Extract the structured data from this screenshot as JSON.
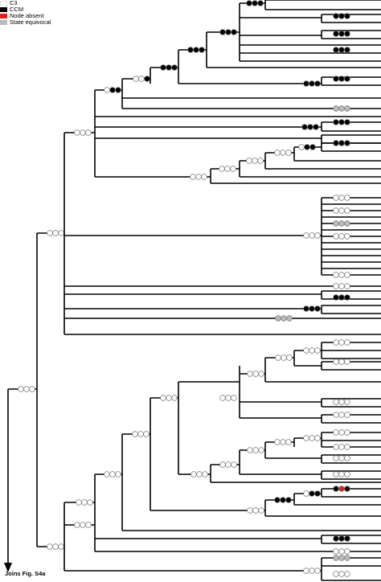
{
  "legend": {
    "items": [
      {
        "label": "C3",
        "color": "#ffffff"
      },
      {
        "label": "CCM",
        "color": "#000000"
      },
      {
        "label": "Node absent",
        "color": "#e02020"
      },
      {
        "label": "State equivocal",
        "color": "#bbbbbb"
      }
    ]
  },
  "footer": {
    "joins_label": "Joins Fig. S4a"
  },
  "colors": {
    "C3": "#ffffff",
    "CCM": "#000000",
    "absent": "#e02020",
    "equivocal": "#bbbbbb",
    "line": "#000000"
  }
}
